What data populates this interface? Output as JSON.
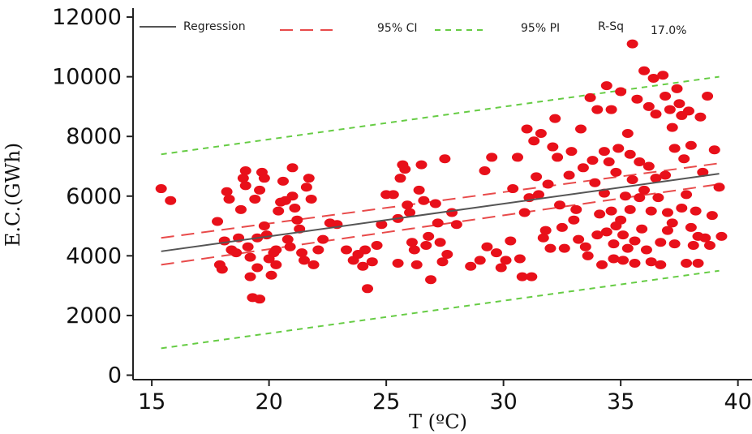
{
  "chart_data": {
    "type": "scatter",
    "xlabel": "T (ºC)",
    "ylabel": "E.C.(GWh)",
    "xlim": [
      14.2,
      40.6
    ],
    "ylim": [
      -150,
      12300
    ],
    "x_ticks": [
      15,
      20,
      25,
      30,
      35,
      40
    ],
    "y_ticks": [
      0,
      2000,
      4000,
      6000,
      8000,
      10000,
      12000
    ],
    "legend": {
      "position": "top",
      "regression_label": "Regression",
      "ci_label": "95% CI",
      "pi_label": "95% PI",
      "rsq_label": "R-Sq",
      "rsq_value": "17.0%"
    },
    "colors": {
      "points": "#e8101a",
      "regression": "#555555",
      "ci": "#e84a4a",
      "pi": "#66cc44",
      "axis": "#222222"
    },
    "series": [
      {
        "name": "Regression",
        "x": [
          15.4,
          39.2
        ],
        "y": [
          4150,
          6750
        ]
      },
      {
        "name": "95% CI",
        "upper": {
          "x": [
            15.4,
            39.2
          ],
          "y": [
            4600,
            7100
          ]
        },
        "lower": {
          "x": [
            15.4,
            39.2
          ],
          "y": [
            3700,
            6400
          ]
        }
      },
      {
        "name": "95% PI",
        "upper": {
          "x": [
            15.4,
            39.2
          ],
          "y": [
            7400,
            10000
          ]
        },
        "lower": {
          "x": [
            15.4,
            39.2
          ],
          "y": [
            900,
            3500
          ]
        }
      }
    ],
    "points": [
      [
        15.4,
        6250
      ],
      [
        15.8,
        5850
      ],
      [
        17.8,
        5150
      ],
      [
        17.9,
        3700
      ],
      [
        18.0,
        3550
      ],
      [
        18.1,
        4500
      ],
      [
        18.2,
        6150
      ],
      [
        18.3,
        5900
      ],
      [
        18.4,
        4200
      ],
      [
        18.6,
        4100
      ],
      [
        18.7,
        4600
      ],
      [
        18.8,
        5550
      ],
      [
        18.9,
        6600
      ],
      [
        19.0,
        6850
      ],
      [
        19.0,
        6350
      ],
      [
        19.1,
        4300
      ],
      [
        19.2,
        3950
      ],
      [
        19.2,
        3300
      ],
      [
        19.3,
        2600
      ],
      [
        19.4,
        5900
      ],
      [
        19.5,
        4600
      ],
      [
        19.5,
        3600
      ],
      [
        19.6,
        2550
      ],
      [
        19.6,
        6200
      ],
      [
        19.7,
        6800
      ],
      [
        19.8,
        6600
      ],
      [
        19.8,
        5000
      ],
      [
        19.9,
        4700
      ],
      [
        20.0,
        3900
      ],
      [
        20.1,
        3350
      ],
      [
        20.2,
        4100
      ],
      [
        20.3,
        4200
      ],
      [
        20.3,
        3700
      ],
      [
        20.4,
        5500
      ],
      [
        20.5,
        5800
      ],
      [
        20.6,
        6500
      ],
      [
        20.7,
        5850
      ],
      [
        20.8,
        4550
      ],
      [
        20.9,
        4300
      ],
      [
        21.0,
        6950
      ],
      [
        21.0,
        6000
      ],
      [
        21.1,
        5600
      ],
      [
        21.2,
        5200
      ],
      [
        21.3,
        4900
      ],
      [
        21.4,
        4100
      ],
      [
        21.5,
        3850
      ],
      [
        21.6,
        6300
      ],
      [
        21.7,
        6600
      ],
      [
        21.8,
        5900
      ],
      [
        21.9,
        3700
      ],
      [
        22.1,
        4200
      ],
      [
        22.3,
        4550
      ],
      [
        22.6,
        5100
      ],
      [
        22.9,
        5050
      ],
      [
        23.3,
        4200
      ],
      [
        23.6,
        3850
      ],
      [
        23.8,
        4050
      ],
      [
        24.0,
        3650
      ],
      [
        24.1,
        4200
      ],
      [
        24.2,
        2900
      ],
      [
        24.4,
        3800
      ],
      [
        24.6,
        4350
      ],
      [
        24.8,
        5050
      ],
      [
        25.0,
        6050
      ],
      [
        25.3,
        6050
      ],
      [
        25.5,
        5250
      ],
      [
        25.5,
        3750
      ],
      [
        25.6,
        6600
      ],
      [
        25.7,
        7050
      ],
      [
        25.8,
        6900
      ],
      [
        25.9,
        5700
      ],
      [
        26.0,
        5450
      ],
      [
        26.1,
        4450
      ],
      [
        26.2,
        4200
      ],
      [
        26.3,
        3700
      ],
      [
        26.4,
        6200
      ],
      [
        26.5,
        7050
      ],
      [
        26.6,
        5850
      ],
      [
        26.7,
        4350
      ],
      [
        26.8,
        4650
      ],
      [
        26.9,
        3200
      ],
      [
        27.1,
        5750
      ],
      [
        27.2,
        5100
      ],
      [
        27.3,
        4450
      ],
      [
        27.4,
        3800
      ],
      [
        27.5,
        7250
      ],
      [
        27.6,
        4050
      ],
      [
        27.8,
        5450
      ],
      [
        28.0,
        5050
      ],
      [
        28.6,
        3650
      ],
      [
        29.0,
        3850
      ],
      [
        29.2,
        6850
      ],
      [
        29.3,
        4300
      ],
      [
        29.5,
        7300
      ],
      [
        29.7,
        4100
      ],
      [
        29.9,
        3600
      ],
      [
        30.1,
        3850
      ],
      [
        30.3,
        4500
      ],
      [
        30.4,
        6250
      ],
      [
        30.6,
        7300
      ],
      [
        30.7,
        3900
      ],
      [
        30.8,
        3300
      ],
      [
        30.9,
        5450
      ],
      [
        31.0,
        8250
      ],
      [
        31.1,
        5950
      ],
      [
        31.2,
        3300
      ],
      [
        31.3,
        7850
      ],
      [
        31.4,
        6650
      ],
      [
        31.5,
        6050
      ],
      [
        31.6,
        8100
      ],
      [
        31.7,
        4600
      ],
      [
        31.8,
        4850
      ],
      [
        31.9,
        6400
      ],
      [
        32.0,
        4250
      ],
      [
        32.1,
        7650
      ],
      [
        32.2,
        8600
      ],
      [
        32.3,
        7300
      ],
      [
        32.4,
        5700
      ],
      [
        32.5,
        4950
      ],
      [
        32.6,
        4250
      ],
      [
        32.8,
        6700
      ],
      [
        32.9,
        7500
      ],
      [
        33.0,
        5200
      ],
      [
        33.1,
        5550
      ],
      [
        33.2,
        4550
      ],
      [
        33.3,
        8250
      ],
      [
        33.4,
        6950
      ],
      [
        33.5,
        4300
      ],
      [
        33.6,
        4000
      ],
      [
        33.7,
        9300
      ],
      [
        33.8,
        7200
      ],
      [
        33.9,
        6450
      ],
      [
        34.0,
        8900
      ],
      [
        34.0,
        4700
      ],
      [
        34.1,
        5400
      ],
      [
        34.2,
        3700
      ],
      [
        34.3,
        6100
      ],
      [
        34.3,
        7500
      ],
      [
        34.4,
        9700
      ],
      [
        34.4,
        4800
      ],
      [
        34.5,
        7150
      ],
      [
        34.6,
        8900
      ],
      [
        34.6,
        5500
      ],
      [
        34.7,
        4400
      ],
      [
        34.7,
        3900
      ],
      [
        34.8,
        6800
      ],
      [
        34.8,
        5000
      ],
      [
        34.9,
        7600
      ],
      [
        35.0,
        9500
      ],
      [
        35.0,
        5200
      ],
      [
        35.1,
        4700
      ],
      [
        35.1,
        3850
      ],
      [
        35.2,
        6000
      ],
      [
        35.3,
        8100
      ],
      [
        35.3,
        4250
      ],
      [
        35.4,
        7400
      ],
      [
        35.4,
        5550
      ],
      [
        35.5,
        11100
      ],
      [
        35.5,
        6550
      ],
      [
        35.6,
        4500
      ],
      [
        35.6,
        3750
      ],
      [
        35.7,
        9250
      ],
      [
        35.8,
        5950
      ],
      [
        35.8,
        7150
      ],
      [
        35.9,
        4900
      ],
      [
        36.0,
        10200
      ],
      [
        36.0,
        6200
      ],
      [
        36.1,
        4200
      ],
      [
        36.2,
        9000
      ],
      [
        36.2,
        7000
      ],
      [
        36.3,
        5500
      ],
      [
        36.3,
        3800
      ],
      [
        36.4,
        9950
      ],
      [
        36.5,
        8750
      ],
      [
        36.5,
        6600
      ],
      [
        36.6,
        5950
      ],
      [
        36.7,
        4450
      ],
      [
        36.7,
        3700
      ],
      [
        36.8,
        10050
      ],
      [
        36.9,
        9350
      ],
      [
        36.9,
        6700
      ],
      [
        37.0,
        4850
      ],
      [
        37.0,
        5450
      ],
      [
        37.1,
        8900
      ],
      [
        37.2,
        8300
      ],
      [
        37.2,
        5100
      ],
      [
        37.3,
        7600
      ],
      [
        37.3,
        4400
      ],
      [
        37.4,
        9600
      ],
      [
        37.5,
        9100
      ],
      [
        37.6,
        8700
      ],
      [
        37.6,
        5600
      ],
      [
        37.7,
        7250
      ],
      [
        37.8,
        6050
      ],
      [
        37.8,
        3750
      ],
      [
        37.9,
        8850
      ],
      [
        38.0,
        7700
      ],
      [
        38.0,
        4950
      ],
      [
        38.1,
        4350
      ],
      [
        38.2,
        5500
      ],
      [
        38.3,
        4650
      ],
      [
        38.3,
        3750
      ],
      [
        38.4,
        8650
      ],
      [
        38.5,
        6800
      ],
      [
        38.6,
        4600
      ],
      [
        38.7,
        9350
      ],
      [
        38.8,
        4350
      ],
      [
        38.9,
        5350
      ],
      [
        39.0,
        7550
      ],
      [
        39.2,
        6300
      ],
      [
        39.3,
        4650
      ]
    ]
  }
}
